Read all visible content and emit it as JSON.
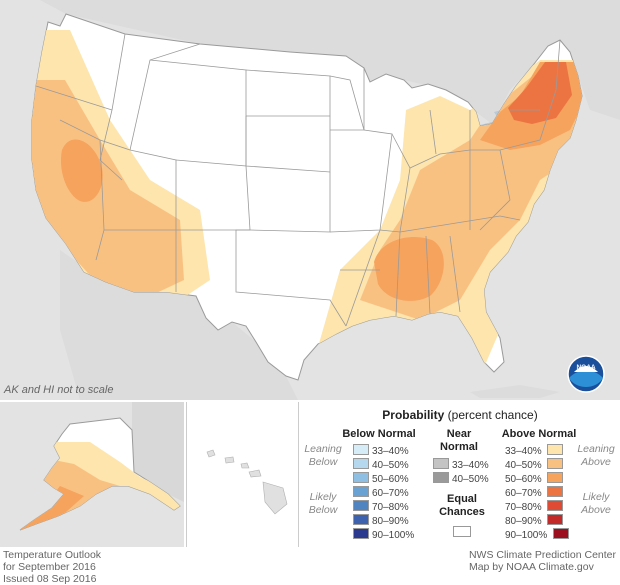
{
  "map": {
    "scale_note": "AK and HI not to scale",
    "logo_text": "NOAA"
  },
  "legend": {
    "title_bold": "Probability",
    "title_rest": "(percent chance)",
    "below": {
      "heading": "Below Normal",
      "leaning_label_1": "Leaning",
      "leaning_label_2": "Below",
      "likely_label_1": "Likely",
      "likely_label_2": "Below",
      "items": [
        {
          "label": "33–40%",
          "color": "#d6ecf7"
        },
        {
          "label": "40–50%",
          "color": "#b5d8ee"
        },
        {
          "label": "50–60%",
          "color": "#8fbfe2"
        },
        {
          "label": "60–70%",
          "color": "#6aa3d3"
        },
        {
          "label": "70–80%",
          "color": "#4f84c1"
        },
        {
          "label": "80–90%",
          "color": "#3e62ad"
        },
        {
          "label": "90–100%",
          "color": "#2b3a8f"
        }
      ]
    },
    "near": {
      "heading_1": "Near",
      "heading_2": "Normal",
      "items": [
        {
          "label": "33–40%",
          "color": "#c4c4c4"
        },
        {
          "label": "40–50%",
          "color": "#9a9a9a"
        }
      ]
    },
    "equal": {
      "label_1": "Equal",
      "label_2": "Chances",
      "color": "#ffffff"
    },
    "above": {
      "heading": "Above Normal",
      "leaning_label_1": "Leaning",
      "leaning_label_2": "Above",
      "likely_label_1": "Likely",
      "likely_label_2": "Above",
      "items": [
        {
          "label": "33–40%",
          "color": "#fde5ad"
        },
        {
          "label": "40–50%",
          "color": "#f9c181"
        },
        {
          "label": "50–60%",
          "color": "#f5a35d"
        },
        {
          "label": "60–70%",
          "color": "#ec7443"
        },
        {
          "label": "70–80%",
          "color": "#df4a34"
        },
        {
          "label": "80–90%",
          "color": "#c22a2a"
        },
        {
          "label": "90–100%",
          "color": "#9b0f1e"
        }
      ]
    }
  },
  "footer": {
    "left_line_1": "Temperature Outlook",
    "left_line_2": "for September 2016",
    "left_line_3": "Issued 08 Sep 2016",
    "right_line_1": "NWS Climate Prediction Center",
    "right_line_2": "Map by NOAA Climate.gov"
  }
}
